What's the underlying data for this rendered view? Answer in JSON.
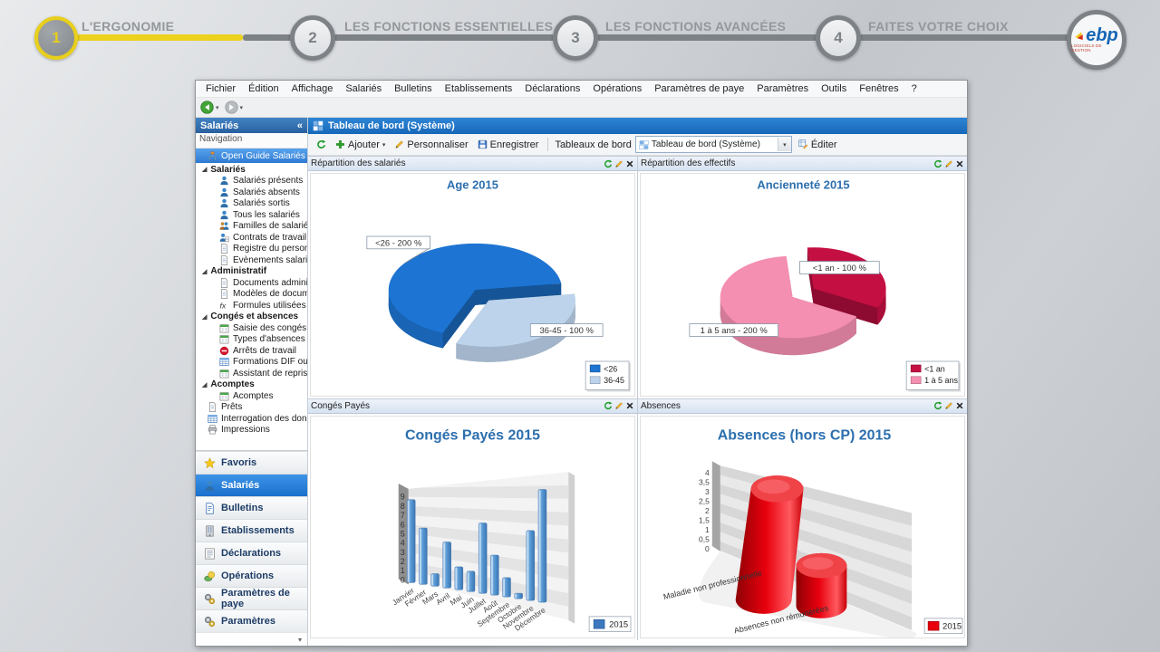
{
  "stepper": {
    "steps": [
      {
        "number": "1",
        "label": "L'ERGONOMIE",
        "active": true
      },
      {
        "number": "2",
        "label": "LES FONCTIONS ESSENTIELLES",
        "active": false
      },
      {
        "number": "3",
        "label": "LES FONCTIONS AVANCÉES",
        "active": false
      },
      {
        "number": "4",
        "label": "FAITES VOTRE CHOIX",
        "active": false
      }
    ],
    "active_color": "#ecd21c",
    "logo_text": "ebp",
    "logo_subtext": "LOGICIELS DE GESTION"
  },
  "app": {
    "menu": [
      "Fichier",
      "Édition",
      "Affichage",
      "Salariés",
      "Bulletins",
      "Etablissements",
      "Déclarations",
      "Opérations",
      "Paramètres de paye",
      "Paramètres",
      "Outils",
      "Fenêtres",
      "?"
    ],
    "window_title": "Tableau de bord (Système)",
    "toolbar": {
      "ajouter_label": "Ajouter",
      "personnaliser_label": "Personnaliser",
      "enregistrer_label": "Enregistrer",
      "tableaux_label": "Tableaux de bord",
      "dropdown_value": "Tableau de bord (Système)",
      "editer_label": "Éditer"
    },
    "sidebar": {
      "title": "Salariés",
      "collapse_glyph": "«",
      "nav_label": "Navigation",
      "selected_item": {
        "label": "Open Guide Salariés",
        "icon": "flowchart-icon"
      },
      "groups": [
        {
          "label": "Salariés",
          "items": [
            {
              "label": "Salariés présents",
              "icon": "person-icon"
            },
            {
              "label": "Salariés absents",
              "icon": "person-icon"
            },
            {
              "label": "Salariés sortis",
              "icon": "person-icon"
            },
            {
              "label": "Tous les salariés",
              "icon": "person-icon"
            },
            {
              "label": "Familles de salariés",
              "icon": "people-icon"
            },
            {
              "label": "Contrats de travail",
              "icon": "person-doc-icon"
            },
            {
              "label": "Registre du personnel",
              "icon": "doc-icon"
            },
            {
              "label": "Evènements salariés",
              "icon": "doc-icon"
            }
          ]
        },
        {
          "label": "Administratif",
          "items": [
            {
              "label": "Documents administratifs",
              "icon": "doc-icon"
            },
            {
              "label": "Modèles de document...",
              "icon": "doc-icon"
            },
            {
              "label": "Formules utilisées dan...",
              "icon": "fx-icon"
            }
          ]
        },
        {
          "label": "Congés et absences",
          "items": [
            {
              "label": "Saisie des congés et a...",
              "icon": "calendar-icon"
            },
            {
              "label": "Types d'absences",
              "icon": "calendar-icon"
            },
            {
              "label": "Arrêts de travail",
              "icon": "stop-icon"
            },
            {
              "label": "Formations DIF ou CPF",
              "icon": "table-icon"
            },
            {
              "label": "Assistant de reprise d...",
              "icon": "calendar-icon"
            }
          ]
        },
        {
          "label": "Acomptes",
          "items": [
            {
              "label": "Acomptes",
              "icon": "calendar-icon"
            }
          ]
        }
      ],
      "loose_items": [
        {
          "label": "Prêts",
          "icon": "doc-icon"
        },
        {
          "label": "Interrogation des donnée...",
          "icon": "table-icon"
        },
        {
          "label": "Impressions",
          "icon": "printer-icon"
        }
      ],
      "bottom_buttons": [
        {
          "label": "Favoris",
          "icon": "star-icon",
          "selected": false
        },
        {
          "label": "Salariés",
          "icon": "person-icon",
          "selected": true
        },
        {
          "label": "Bulletins",
          "icon": "bulletin-icon",
          "selected": false
        },
        {
          "label": "Etablissements",
          "icon": "building-icon",
          "selected": false
        },
        {
          "label": "Déclarations",
          "icon": "form-icon",
          "selected": false
        },
        {
          "label": "Opérations",
          "icon": "money-icon",
          "selected": false
        },
        {
          "label": "Paramètres de paye",
          "icon": "gears-icon",
          "selected": false
        },
        {
          "label": "Paramètres",
          "icon": "gears-icon",
          "selected": false
        }
      ],
      "footer_glyph": "▾"
    },
    "panels": [
      {
        "header": "Répartition des salariés"
      },
      {
        "header": "Répartition des effectifs"
      },
      {
        "header": "Congés Payés"
      },
      {
        "header": "Absences"
      }
    ]
  },
  "chart_data": [
    {
      "type": "pie",
      "title": "Age  2015",
      "title_color": "#2c6fae",
      "slices": [
        {
          "label": "<26",
          "value": 200,
          "display": "<26 - 200 %",
          "color": "#1d74d2",
          "exploded": false
        },
        {
          "label": "36-45",
          "value": 100,
          "display": "36-45 - 100 %",
          "color": "#bcd3eb",
          "exploded": true
        }
      ],
      "legend_position": "bottom-right"
    },
    {
      "type": "pie",
      "title": "Ancienneté  2015",
      "title_color": "#2c6fae",
      "slices": [
        {
          "label": "<1 an",
          "value": 100,
          "display": "<1 an - 100 %",
          "color": "#c40f42",
          "exploded": true
        },
        {
          "label": "1 à 5 ans",
          "value": 200,
          "display": "1 à 5 ans - 200 %",
          "color": "#f48fb1",
          "exploded": false
        }
      ],
      "legend_position": "bottom-right"
    },
    {
      "type": "bar",
      "title": "Congés Payés 2015",
      "title_color": "#2c6fae",
      "categories": [
        "Janvier",
        "Février",
        "Mars",
        "Avril",
        "Mai",
        "Juin",
        "Juillet",
        "Août",
        "Septembre",
        "Octobre",
        "Novembre",
        "Décembre"
      ],
      "values": [
        9,
        6,
        1.3,
        4.7,
        2.3,
        2,
        6.8,
        3.8,
        1.8,
        0.5,
        6.3,
        10
      ],
      "yticks": [
        0,
        1,
        2,
        3,
        4,
        5,
        6,
        7,
        8,
        9
      ],
      "ylim": [
        0,
        10
      ],
      "legend": "2015",
      "color": "#5b9bd5",
      "grid": true
    },
    {
      "type": "cylinder-bar",
      "title": "Absences (hors CP)  2015",
      "title_color": "#2c6fae",
      "categories": [
        "Maladie non professionnelle",
        "Absences non rémunérées"
      ],
      "values": [
        4,
        1
      ],
      "ytick_labels": [
        "0",
        "0,5",
        "1",
        "1,5",
        "2",
        "2,5",
        "3",
        "3,5",
        "4"
      ],
      "ylim": [
        0,
        4
      ],
      "legend": "2015",
      "color": "#e8000d",
      "grid": true
    }
  ]
}
